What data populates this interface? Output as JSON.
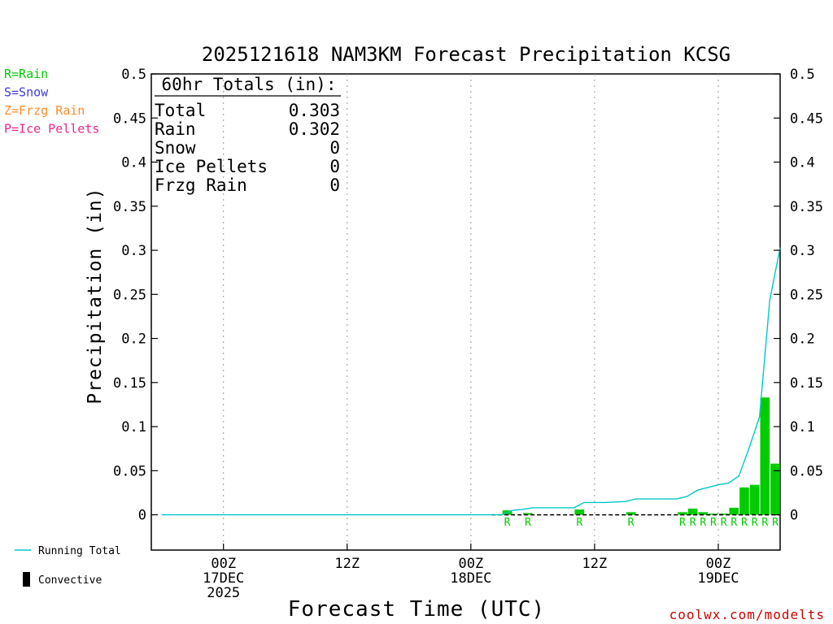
{
  "chart_data": {
    "type": "bar",
    "title": "2025121618 NAM3KM Forecast Precipitation KCSG",
    "ylabel": "Precipitation (in)",
    "xlabel": "Forecast Time (UTC)",
    "ylim": [
      -0.04,
      0.5
    ],
    "yticks": [
      0,
      0.05,
      0.1,
      0.15,
      0.2,
      0.25,
      0.3,
      0.35,
      0.4,
      0.45,
      0.5
    ],
    "ytick_labels": [
      "0",
      "0.05",
      "0.1",
      "0.15",
      "0.2",
      "0.25",
      "0.3",
      "0.35",
      "0.4",
      "0.45",
      "0.5"
    ],
    "x_unit": "hours since 2025-12-16 18Z",
    "xlim": [
      -1,
      60
    ],
    "xticks": [
      {
        "x": 6,
        "lines": [
          "00Z",
          "17DEC",
          "2025"
        ]
      },
      {
        "x": 18,
        "lines": [
          "12Z"
        ]
      },
      {
        "x": 30,
        "lines": [
          "00Z",
          "18DEC"
        ]
      },
      {
        "x": 42,
        "lines": [
          "12Z"
        ]
      },
      {
        "x": 54,
        "lines": [
          "00Z",
          "19DEC"
        ]
      }
    ],
    "bars": [
      {
        "x": 34,
        "value": 0.005,
        "type": "R"
      },
      {
        "x": 36,
        "value": 0.002,
        "type": "R"
      },
      {
        "x": 41,
        "value": 0.006,
        "type": "R"
      },
      {
        "x": 46,
        "value": 0.003,
        "type": "R"
      },
      {
        "x": 51,
        "value": 0.003,
        "type": "R"
      },
      {
        "x": 52,
        "value": 0.007,
        "type": "R"
      },
      {
        "x": 53,
        "value": 0.003,
        "type": "R"
      },
      {
        "x": 54,
        "value": 0.001,
        "type": "R"
      },
      {
        "x": 55,
        "value": 0.001,
        "type": "R"
      },
      {
        "x": 56,
        "value": 0.008,
        "type": "R"
      },
      {
        "x": 57,
        "value": 0.031,
        "type": "R"
      },
      {
        "x": 58,
        "value": 0.034,
        "type": "R"
      },
      {
        "x": 59,
        "value": 0.133,
        "type": "R"
      },
      {
        "x": 60,
        "value": 0.058,
        "type": "R"
      }
    ],
    "running_total": {
      "name": "Running Total",
      "color": "#00c8c8",
      "points": [
        [
          0,
          0
        ],
        [
          33,
          0
        ],
        [
          34,
          0.005
        ],
        [
          35,
          0.006
        ],
        [
          36,
          0.008
        ],
        [
          37,
          0.008
        ],
        [
          39,
          0.008
        ],
        [
          40,
          0.008
        ],
        [
          41,
          0.014
        ],
        [
          43,
          0.014
        ],
        [
          45,
          0.015
        ],
        [
          46,
          0.018
        ],
        [
          48,
          0.018
        ],
        [
          50,
          0.018
        ],
        [
          51,
          0.021
        ],
        [
          52,
          0.028
        ],
        [
          53,
          0.031
        ],
        [
          54,
          0.034
        ],
        [
          55,
          0.036
        ],
        [
          56,
          0.044
        ],
        [
          57,
          0.076
        ],
        [
          58,
          0.111
        ],
        [
          59,
          0.244
        ],
        [
          60,
          0.303
        ]
      ]
    },
    "precip_legend": [
      {
        "label": "R=Rain",
        "color": "#00cc00"
      },
      {
        "label": "S=Snow",
        "color": "#3c3cdc"
      },
      {
        "label": "Z=Frzg Rain",
        "color": "#ff8c28"
      },
      {
        "label": "P=Ice Pellets",
        "color": "#e6288c"
      }
    ],
    "totals": {
      "header": "60hr Totals (in):",
      "rows": [
        {
          "label": "Total",
          "value": "0.303"
        },
        {
          "label": "Rain",
          "value": "0.302"
        },
        {
          "label": "Snow",
          "value": "0"
        },
        {
          "label": "Ice Pellets",
          "value": "0"
        },
        {
          "label": "Frzg Rain",
          "value": "0"
        }
      ]
    },
    "series_legend": [
      {
        "label": "Running Total",
        "kind": "line",
        "color": "#00c8c8"
      },
      {
        "label": "Convective",
        "kind": "box",
        "color": "#000000"
      }
    ],
    "bar_color": "#00cc00",
    "credit": "coolwx.com/modelts"
  }
}
